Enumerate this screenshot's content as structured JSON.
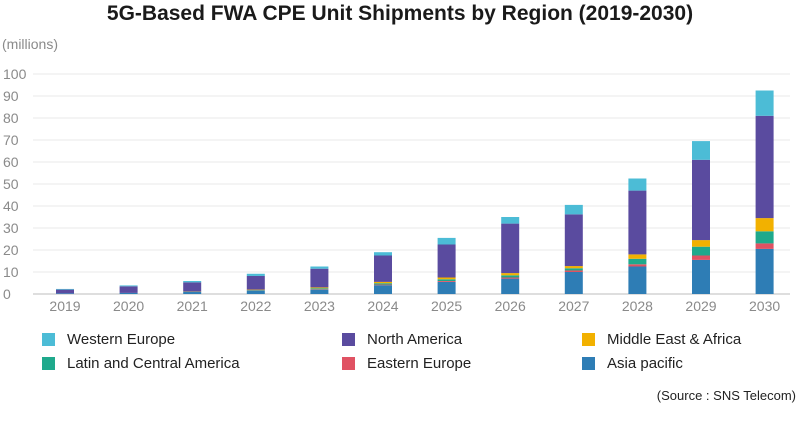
{
  "chart_data": {
    "type": "bar",
    "stacked": true,
    "title": "5G-Based FWA CPE Unit Shipments by Region (2019-2030)",
    "unit_label": "(millions)",
    "ylim": [
      0,
      100
    ],
    "yticks": [
      0,
      10,
      20,
      30,
      40,
      50,
      60,
      70,
      80,
      90,
      100
    ],
    "grid": true,
    "legend_position": "bottom",
    "categories": [
      "2019",
      "2020",
      "2021",
      "2022",
      "2023",
      "2024",
      "2025",
      "2026",
      "2027",
      "2028",
      "2029",
      "2030"
    ],
    "series": [
      {
        "name": "Asia pacific",
        "color": "#2e7db5",
        "values": [
          0.3,
          0.5,
          0.9,
          1.5,
          2.0,
          4.0,
          5.5,
          7.0,
          10.0,
          12.5,
          15.5,
          20.5
        ]
      },
      {
        "name": "Eastern Europe",
        "color": "#e05263",
        "values": [
          0,
          0,
          0,
          0.1,
          0.2,
          0.3,
          0.4,
          0.5,
          0.7,
          1.0,
          2.0,
          2.5
        ]
      },
      {
        "name": "Latin and Central America",
        "color": "#1fa98c",
        "values": [
          0,
          0,
          0.1,
          0.2,
          0.4,
          0.6,
          0.8,
          1.0,
          1.0,
          2.5,
          4.0,
          5.5
        ]
      },
      {
        "name": "Middle East & Africa",
        "color": "#f2b100",
        "values": [
          0,
          0,
          0.1,
          0.2,
          0.4,
          0.6,
          0.8,
          1.0,
          1.0,
          2.0,
          3.0,
          6.0
        ]
      },
      {
        "name": "North America",
        "color": "#5a4b9f",
        "values": [
          1.7,
          3.0,
          4.2,
          6.2,
          8.5,
          12.0,
          15.0,
          22.5,
          23.5,
          29.0,
          36.5,
          46.5
        ]
      },
      {
        "name": "Western Europe",
        "color": "#4cbcd6",
        "values": [
          0.3,
          0.4,
          0.6,
          1.0,
          1.0,
          1.5,
          3.0,
          3.0,
          4.3,
          5.5,
          8.5,
          11.5
        ]
      }
    ],
    "legend_order": [
      "Western Europe",
      "North America",
      "Middle East & Africa",
      "Latin and Central America",
      "Eastern Europe",
      "Asia pacific"
    ]
  },
  "source": "(Source : SNS Telecom)"
}
